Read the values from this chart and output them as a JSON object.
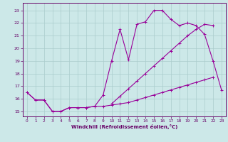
{
  "xlabel": "Windchill (Refroidissement éolien,°C)",
  "bg_color": "#cce8e8",
  "grid_color": "#aacccc",
  "line_color": "#990099",
  "xlim": [
    -0.5,
    23.5
  ],
  "ylim": [
    14.6,
    23.6
  ],
  "xticks": [
    0,
    1,
    2,
    3,
    4,
    5,
    6,
    7,
    8,
    9,
    10,
    11,
    12,
    13,
    14,
    15,
    16,
    17,
    18,
    19,
    20,
    21,
    22,
    23
  ],
  "yticks": [
    15,
    16,
    17,
    18,
    19,
    20,
    21,
    22,
    23
  ],
  "series1_x": [
    0,
    1,
    2,
    3,
    4,
    5,
    6,
    7,
    8,
    9,
    10,
    11,
    12,
    13,
    14,
    15,
    16,
    17,
    18,
    19,
    20,
    21,
    22,
    23
  ],
  "series1_y": [
    16.5,
    15.9,
    15.9,
    15.0,
    15.0,
    15.3,
    15.3,
    15.3,
    15.4,
    16.3,
    19.0,
    21.5,
    19.1,
    21.9,
    22.1,
    23.0,
    23.0,
    22.3,
    21.8,
    22.0,
    21.8,
    21.1,
    19.0,
    16.7
  ],
  "series2_x": [
    0,
    1,
    2,
    3,
    4,
    5,
    6,
    7,
    8,
    9,
    10,
    11,
    12,
    13,
    14,
    15,
    16,
    17,
    18,
    19,
    20,
    21,
    22
  ],
  "series2_y": [
    16.5,
    15.9,
    15.9,
    15.0,
    15.0,
    15.3,
    15.3,
    15.3,
    15.4,
    15.4,
    15.5,
    15.6,
    15.7,
    15.9,
    16.1,
    16.3,
    16.5,
    16.7,
    16.9,
    17.1,
    17.3,
    17.5,
    17.7
  ],
  "series3_x": [
    10,
    11,
    12,
    13,
    14,
    15,
    16,
    17,
    18,
    19,
    20,
    21,
    22
  ],
  "series3_y": [
    15.6,
    16.2,
    16.8,
    17.4,
    18.0,
    18.6,
    19.2,
    19.8,
    20.4,
    21.0,
    21.5,
    21.9,
    21.8
  ]
}
